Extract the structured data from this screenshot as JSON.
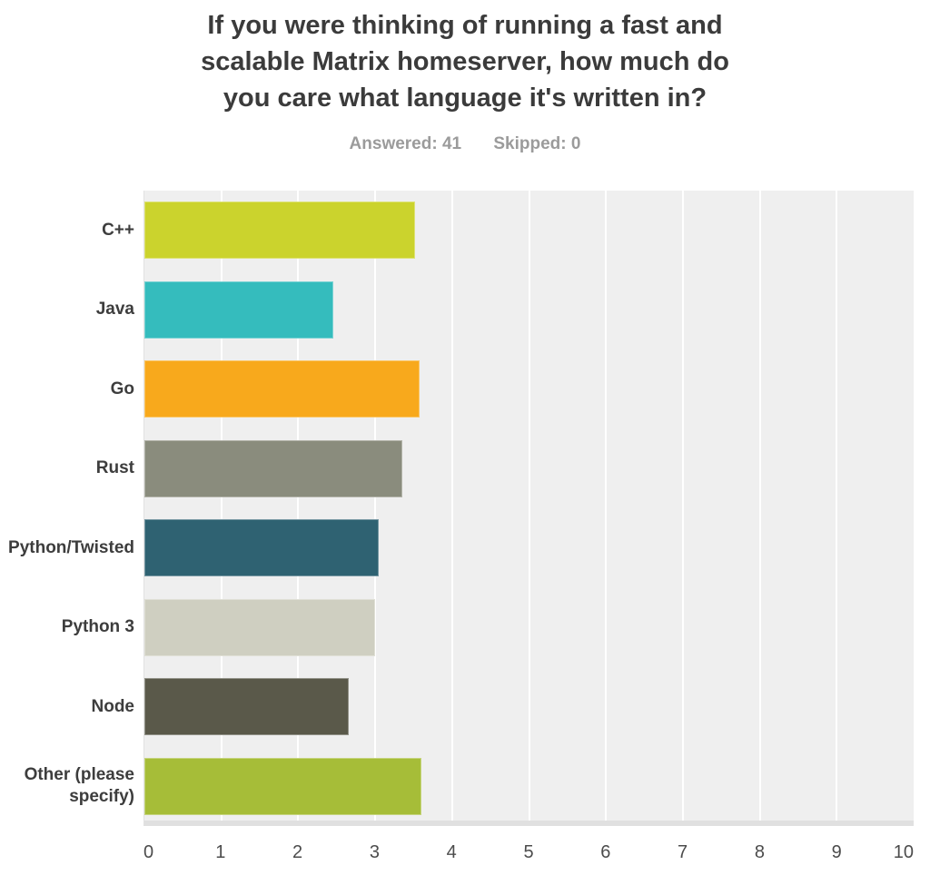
{
  "header": {
    "title_lines": [
      "If you were thinking of running a fast and",
      "scalable Matrix homeserver, how much do",
      "you care what language it's written in?"
    ],
    "answered_label": "Answered: 41",
    "skipped_label": "Skipped: 0"
  },
  "chart_data": {
    "type": "bar",
    "orientation": "horizontal",
    "title": "If you were thinking of running a fast and scalable Matrix homeserver, how much do you care what language it's written in?",
    "answered": 41,
    "skipped": 0,
    "categories": [
      "C++",
      "Java",
      "Go",
      "Rust",
      "Python/Twisted",
      "Python 3",
      "Node",
      "Other (please specify)"
    ],
    "values": [
      3.52,
      2.46,
      3.58,
      3.35,
      3.05,
      3.0,
      2.66,
      3.6
    ],
    "bar_colors": [
      "#cbd32d",
      "#35bcbd",
      "#f8a91c",
      "#8a8c7d",
      "#2f6272",
      "#cfcfc1",
      "#5a594a",
      "#a6bd38"
    ],
    "xlabel": "",
    "ylabel": "",
    "xlim": [
      0,
      10
    ],
    "x_ticks": [
      0,
      1,
      2,
      3,
      4,
      5,
      6,
      7,
      8,
      9,
      10
    ],
    "grid": true,
    "legend": false,
    "colors": {
      "plot_background": "#efefef",
      "gridline": "#ffffff",
      "axis_strip": "#e0e0e0",
      "title_text": "#3b3b3b",
      "meta_text": "#9b9b9b",
      "category_text": "#3d3d3d",
      "tick_text": "#4c4c4c"
    }
  }
}
